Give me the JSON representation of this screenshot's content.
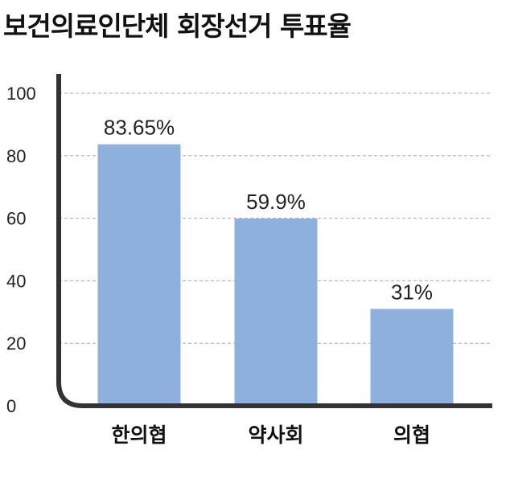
{
  "chart_data": {
    "type": "bar",
    "title": "보건의료인단체 회장선거 투표율",
    "categories": [
      "한의협",
      "약사회",
      "의협"
    ],
    "values": [
      83.65,
      59.9,
      31
    ],
    "data_labels": [
      "83.65%",
      "59.9%",
      "31%"
    ],
    "ylim": [
      0,
      100
    ],
    "yticks": [
      0,
      20,
      40,
      60,
      80,
      100
    ],
    "grid": true,
    "bar_color": "#8db0dc",
    "axis_color": "#333333",
    "grid_color": "#aaaaaa"
  }
}
